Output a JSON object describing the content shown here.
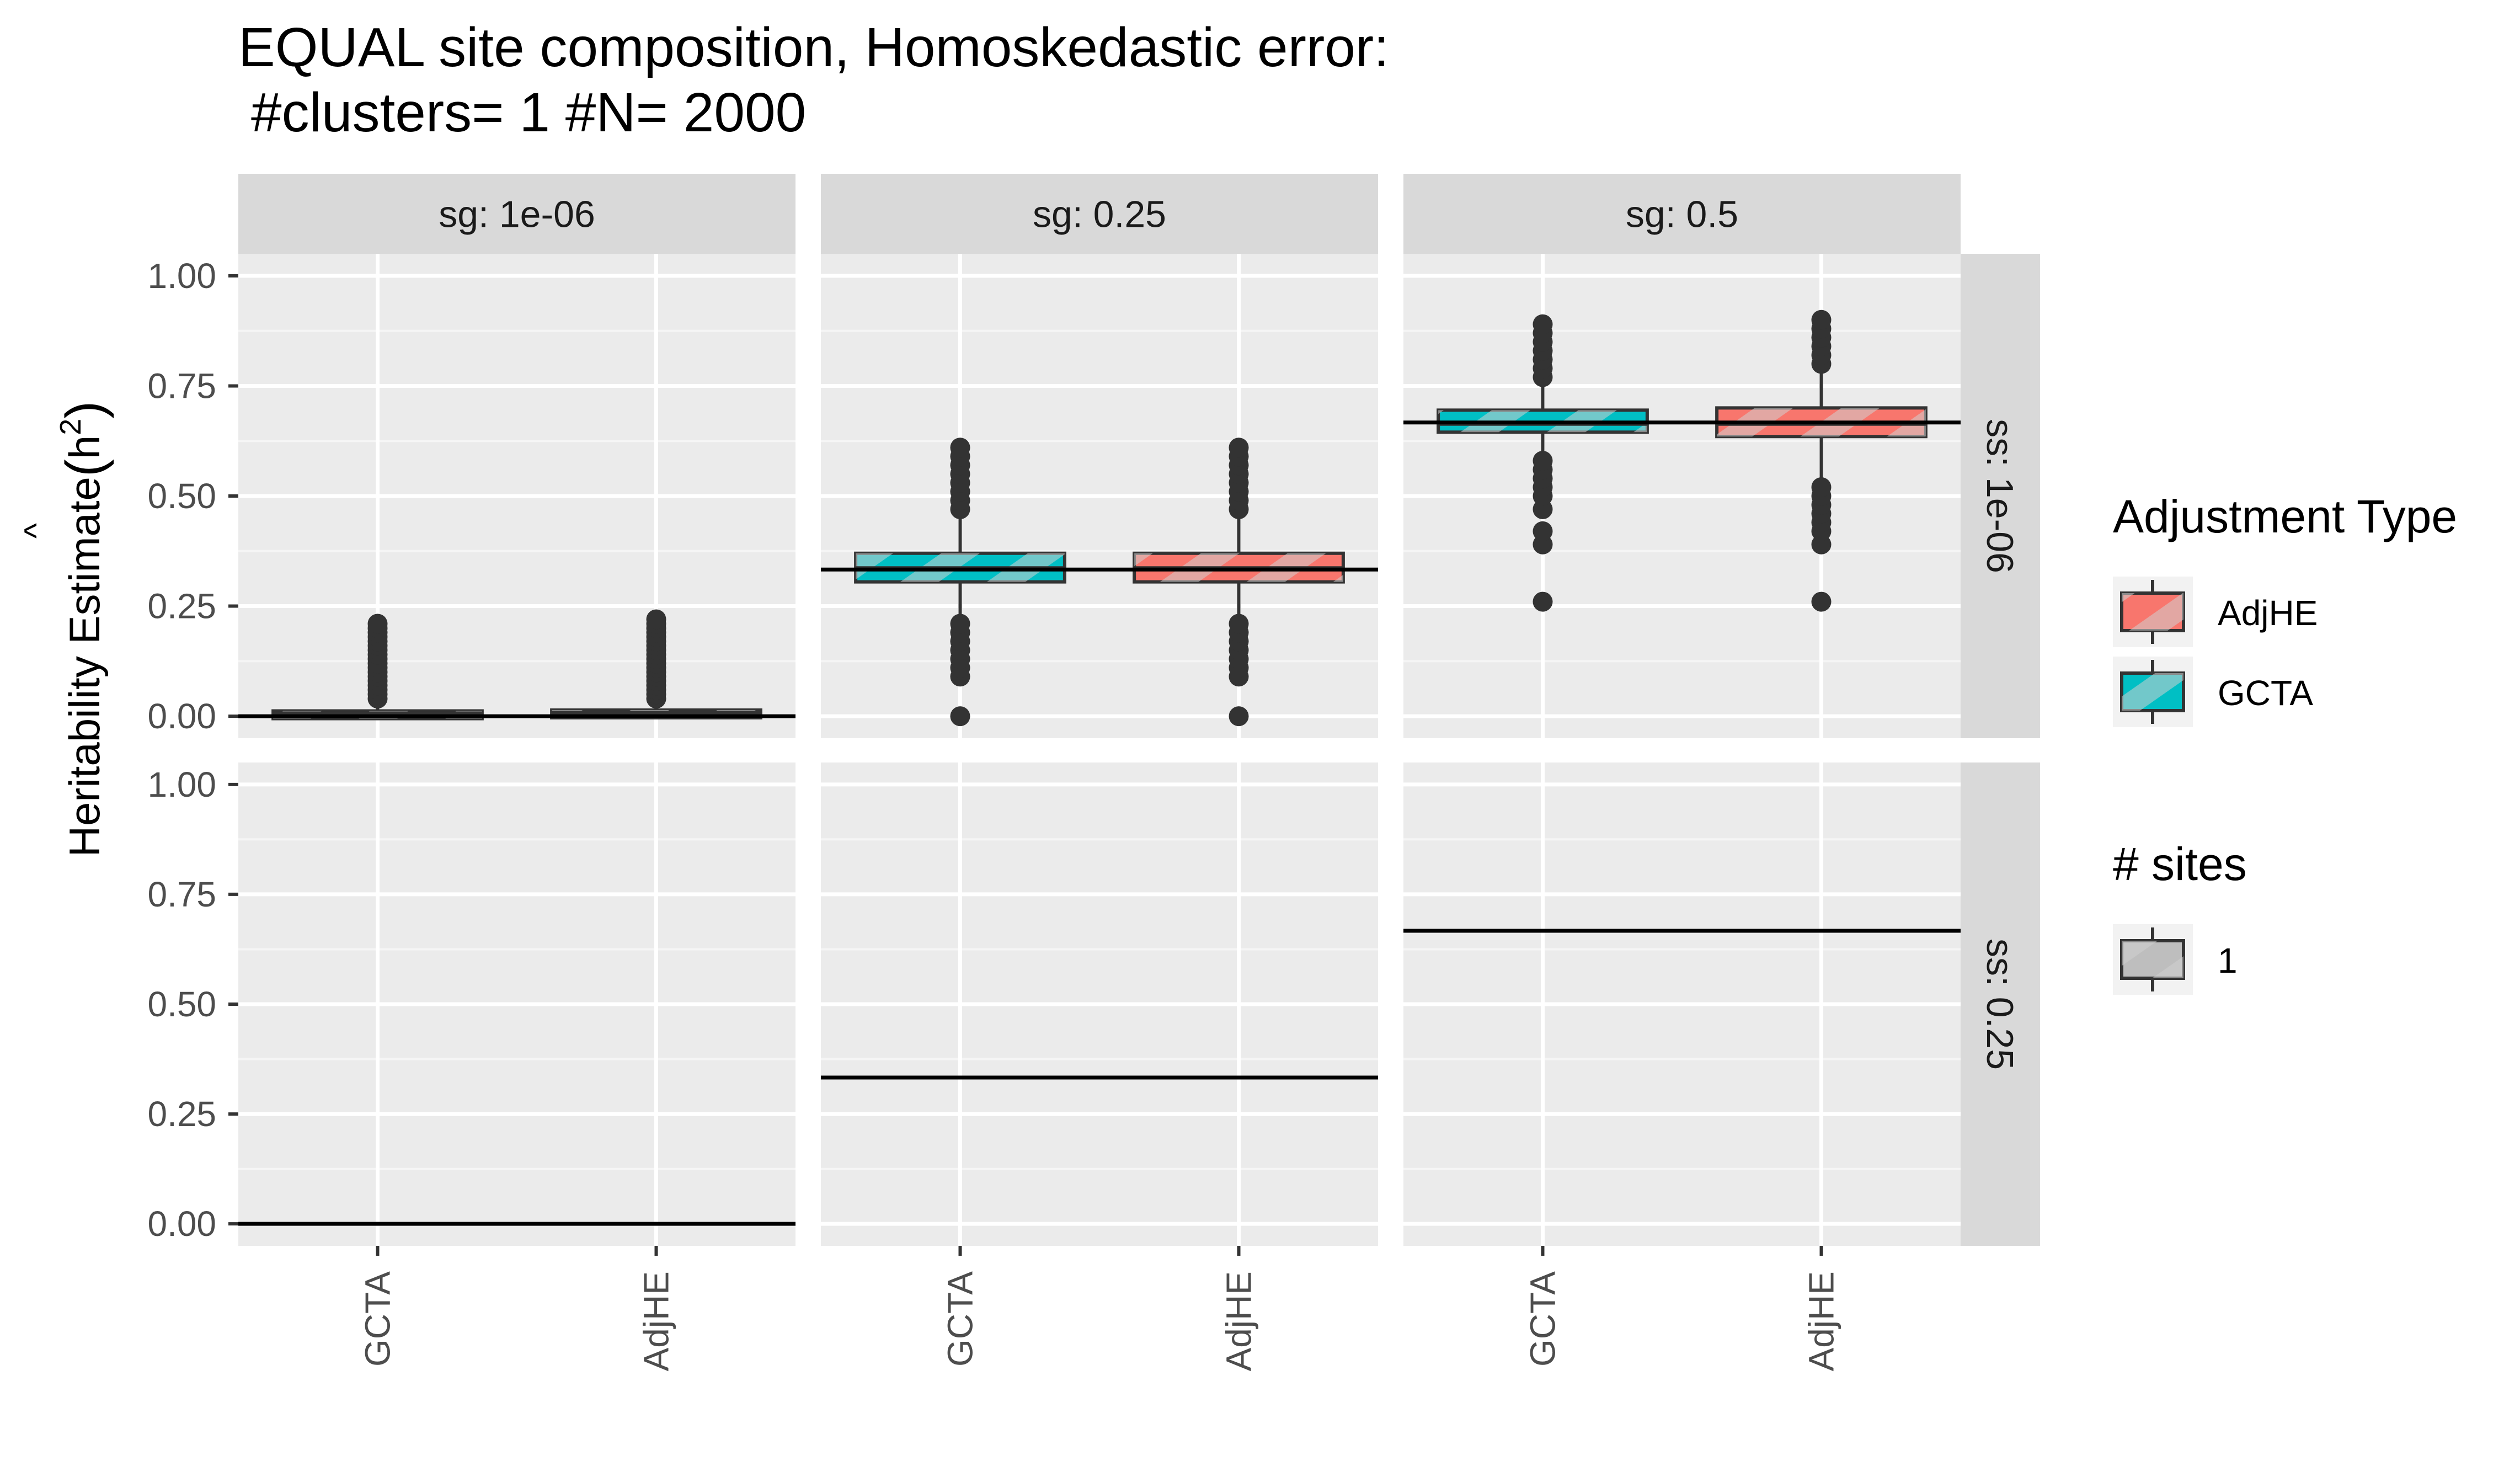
{
  "chart_data": {
    "type": "boxplot",
    "title": "EQUAL site composition, Homoskedastic error:",
    "subtitle": "#clusters= 1 #N= 2000",
    "ylabel": "Heritability Estimate",
    "ylabel_math": {
      "base": "h",
      "superscript": "2",
      "accent": "^"
    },
    "ylim": [
      -0.05,
      1.05
    ],
    "y_ticks": [
      "0.00",
      "0.25",
      "0.50",
      "0.75",
      "1.00"
    ],
    "x_categories": [
      "GCTA",
      "AdjHE"
    ],
    "grid": true,
    "col_facets": [
      "sg: 1e-06",
      "sg: 0.25",
      "sg: 0.5"
    ],
    "row_facets": [
      "ss: 1e-06",
      "ss: 0.25"
    ],
    "reference_lines": [
      [
        0.0,
        0.333,
        0.667
      ],
      [
        0.0,
        0.333,
        0.667
      ]
    ],
    "panels": [
      [
        {
          "boxes": [
            {
              "category": "GCTA",
              "q1": 0.0,
              "median": 0.005,
              "q3": 0.012,
              "whisker_low": 0.0,
              "whisker_high": 0.03,
              "outliers": [
                0.04,
                0.05,
                0.06,
                0.07,
                0.08,
                0.09,
                0.1,
                0.11,
                0.12,
                0.13,
                0.14,
                0.15,
                0.16,
                0.17,
                0.18,
                0.19,
                0.2,
                0.21
              ]
            },
            {
              "category": "AdjHE",
              "q1": 0.0,
              "median": 0.006,
              "q3": 0.014,
              "whisker_low": 0.0,
              "whisker_high": 0.035,
              "outliers": [
                0.04,
                0.05,
                0.06,
                0.07,
                0.08,
                0.09,
                0.1,
                0.11,
                0.12,
                0.13,
                0.14,
                0.15,
                0.16,
                0.17,
                0.18,
                0.19,
                0.2,
                0.21,
                0.22
              ]
            }
          ]
        },
        {
          "boxes": [
            {
              "category": "GCTA",
              "q1": 0.305,
              "median": 0.335,
              "q3": 0.37,
              "whisker_low": 0.21,
              "whisker_high": 0.46,
              "outliers": [
                0.0,
                0.09,
                0.11,
                0.13,
                0.15,
                0.17,
                0.19,
                0.21,
                0.47,
                0.49,
                0.51,
                0.53,
                0.55,
                0.57,
                0.59,
                0.61
              ]
            },
            {
              "category": "AdjHE",
              "q1": 0.305,
              "median": 0.335,
              "q3": 0.37,
              "whisker_low": 0.21,
              "whisker_high": 0.46,
              "outliers": [
                0.0,
                0.09,
                0.11,
                0.13,
                0.15,
                0.17,
                0.19,
                0.21,
                0.47,
                0.49,
                0.51,
                0.53,
                0.55,
                0.57,
                0.59,
                0.61
              ]
            }
          ]
        },
        {
          "boxes": [
            {
              "category": "GCTA",
              "q1": 0.645,
              "median": 0.665,
              "q3": 0.695,
              "whisker_low": 0.58,
              "whisker_high": 0.76,
              "outliers": [
                0.26,
                0.39,
                0.42,
                0.47,
                0.5,
                0.52,
                0.54,
                0.56,
                0.58,
                0.77,
                0.79,
                0.81,
                0.83,
                0.85,
                0.87,
                0.89
              ]
            },
            {
              "category": "AdjHE",
              "q1": 0.635,
              "median": 0.665,
              "q3": 0.7,
              "whisker_low": 0.54,
              "whisker_high": 0.78,
              "outliers": [
                0.26,
                0.39,
                0.42,
                0.44,
                0.46,
                0.48,
                0.5,
                0.52,
                0.8,
                0.82,
                0.84,
                0.86,
                0.88,
                0.9
              ]
            }
          ]
        }
      ],
      [
        {
          "boxes": []
        },
        {
          "boxes": []
        },
        {
          "boxes": []
        }
      ]
    ],
    "legends": [
      {
        "title": "Adjustment Type",
        "items": [
          {
            "label": "AdjHE",
            "color": "#F8766D"
          },
          {
            "label": "GCTA",
            "color": "#00BFC4"
          }
        ]
      },
      {
        "title": "# sites",
        "items": [
          {
            "label": "1",
            "color": "#BEBEBE"
          }
        ]
      }
    ],
    "colors": {
      "panel_bg": "#EBEBEB",
      "strip_bg": "#D9D9D9",
      "grid_major": "#FFFFFF",
      "grid_minor": "#F5F5F5",
      "outline": "#333333",
      "category": {
        "GCTA": "#00BFC4",
        "AdjHE": "#F8766D"
      }
    },
    "legend_position": "right"
  }
}
